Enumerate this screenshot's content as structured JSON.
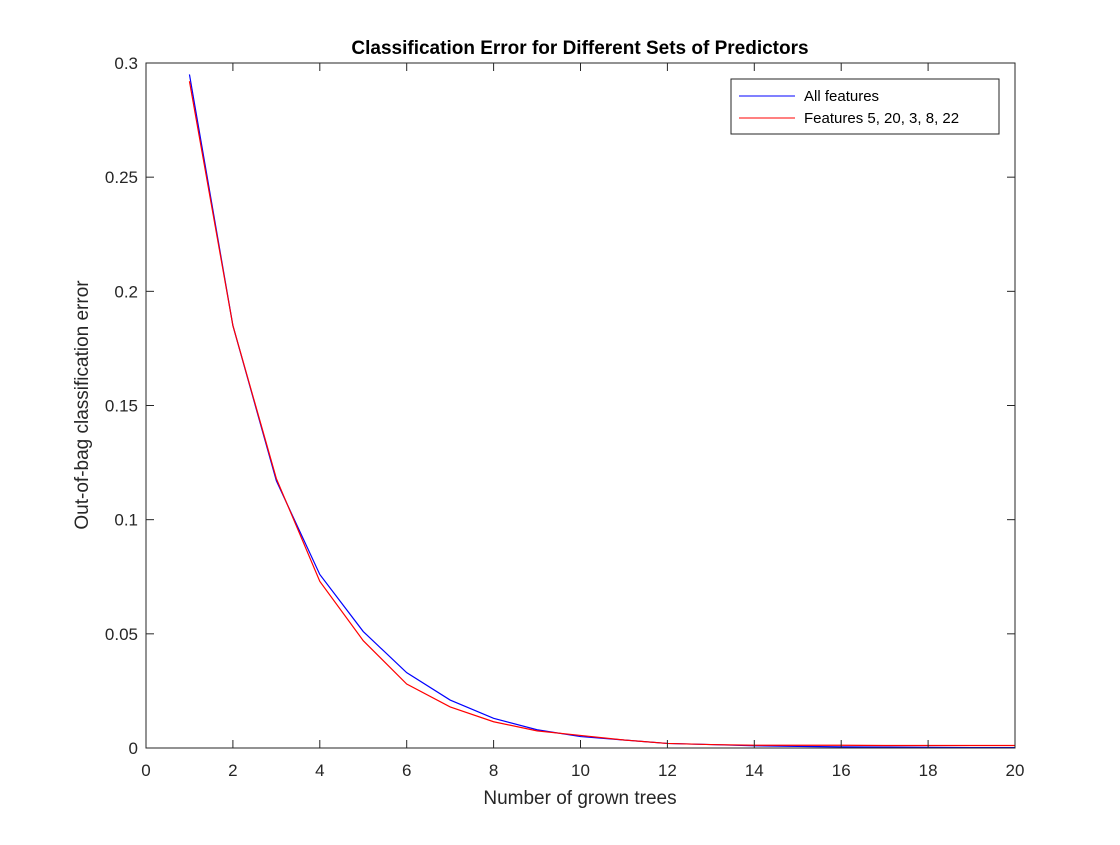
{
  "chart_data": {
    "type": "line",
    "title": "Classification Error for Different Sets of Predictors",
    "xlabel": "Number of grown trees",
    "ylabel": "Out-of-bag classification error",
    "xlim": [
      0,
      20
    ],
    "ylim": [
      0,
      0.3
    ],
    "xticks": [
      0,
      2,
      4,
      6,
      8,
      10,
      12,
      14,
      16,
      18,
      20
    ],
    "xtick_labels": [
      "0",
      "2",
      "4",
      "6",
      "8",
      "10",
      "12",
      "14",
      "16",
      "18",
      "20"
    ],
    "yticks": [
      0,
      0.05,
      0.1,
      0.15,
      0.2,
      0.25,
      0.3
    ],
    "ytick_labels": [
      "0",
      "0.05",
      "0.1",
      "0.15",
      "0.2",
      "0.25",
      "0.3"
    ],
    "grid": false,
    "box": true,
    "legend_position": "top-right",
    "x": [
      1,
      2,
      3,
      4,
      5,
      6,
      7,
      8,
      9,
      10,
      11,
      12,
      13,
      14,
      15,
      16,
      17,
      18,
      19,
      20
    ],
    "series": [
      {
        "name": "All features",
        "color": "#0000ff",
        "values": [
          0.295,
          0.185,
          0.117,
          0.076,
          0.051,
          0.033,
          0.021,
          0.013,
          0.008,
          0.005,
          0.0035,
          0.002,
          0.0015,
          0.001,
          0.0007,
          0.0005,
          0.0004,
          0.0003,
          0.0002,
          0.0002
        ]
      },
      {
        "name": "Features 5, 20, 3, 8, 22",
        "color": "#ff0000",
        "values": [
          0.292,
          0.185,
          0.118,
          0.073,
          0.047,
          0.028,
          0.018,
          0.0115,
          0.0075,
          0.0055,
          0.0035,
          0.002,
          0.0015,
          0.0012,
          0.0012,
          0.0012,
          0.0011,
          0.0011,
          0.0011,
          0.0011
        ]
      }
    ]
  }
}
